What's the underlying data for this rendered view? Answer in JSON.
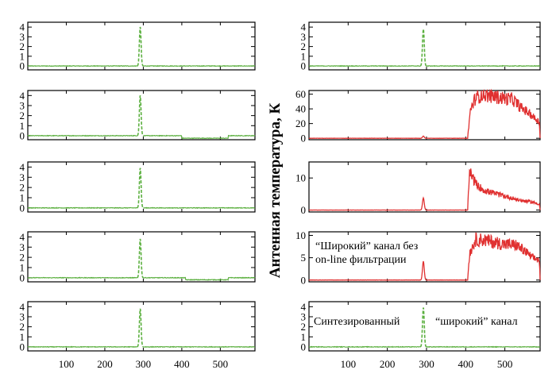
{
  "chart_data": {
    "type": "line",
    "ylabel": "Антенная температура, К",
    "x_ticks": [
      100,
      200,
      300,
      400,
      500
    ],
    "xlim": [
      0,
      590
    ],
    "colors": {
      "green": "#5cb040",
      "red": "#e03030"
    },
    "panels": [
      {
        "id": "left-1",
        "column": "left",
        "row": 1,
        "ylim": [
          -0.4,
          4.5
        ],
        "y_ticks": [
          0,
          1,
          2,
          3,
          4
        ],
        "series": [
          {
            "style": "green-dashed",
            "baseline": 0.0,
            "peak_x": 292,
            "peak_y": 4.0
          }
        ]
      },
      {
        "id": "left-2",
        "column": "left",
        "row": 2,
        "ylim": [
          -0.4,
          4.5
        ],
        "y_ticks": [
          0,
          1,
          2,
          3,
          4
        ],
        "series": [
          {
            "style": "green-dashed",
            "baseline": 0.0,
            "peak_x": 292,
            "peak_y": 4.0,
            "dip": {
              "from": 400,
              "to": 520,
              "value": -0.25
            }
          }
        ]
      },
      {
        "id": "left-3",
        "column": "left",
        "row": 3,
        "ylim": [
          -0.4,
          4.5
        ],
        "y_ticks": [
          0,
          1,
          2,
          3,
          4
        ],
        "series": [
          {
            "style": "green-dashed",
            "baseline": 0.0,
            "peak_x": 292,
            "peak_y": 3.9
          }
        ]
      },
      {
        "id": "left-4",
        "column": "left",
        "row": 4,
        "ylim": [
          -0.4,
          4.5
        ],
        "y_ticks": [
          0,
          1,
          2,
          3,
          4
        ],
        "series": [
          {
            "style": "green-dashed",
            "baseline": 0.0,
            "peak_x": 292,
            "peak_y": 3.8,
            "dip": {
              "from": 410,
              "to": 520,
              "value": -0.2
            }
          }
        ]
      },
      {
        "id": "left-5",
        "column": "left",
        "row": 5,
        "ylim": [
          -0.4,
          4.5
        ],
        "y_ticks": [
          0,
          1,
          2,
          3,
          4
        ],
        "series": [
          {
            "style": "green-dashed",
            "baseline": 0.0,
            "peak_x": 292,
            "peak_y": 3.8
          }
        ]
      },
      {
        "id": "right-1",
        "column": "right",
        "row": 1,
        "ylim": [
          -0.4,
          4.5
        ],
        "y_ticks": [
          0,
          1,
          2,
          3,
          4
        ],
        "series": [
          {
            "style": "green-dashed",
            "baseline": 0.0,
            "peak_x": 292,
            "peak_y": 3.8
          }
        ]
      },
      {
        "id": "right-2",
        "column": "right",
        "row": 2,
        "ylim": [
          -2,
          65
        ],
        "y_ticks": [
          0,
          20,
          40,
          60
        ],
        "series": [
          {
            "style": "red-solid",
            "baseline": 0.0,
            "peak_x": 292,
            "peak_y": 3.0,
            "burst": {
              "from": 405,
              "to": 590,
              "levels": [
                [
                  405,
                  0
                ],
                [
                  412,
                  38
                ],
                [
                  425,
                  55
                ],
                [
                  445,
                  60
                ],
                [
                  470,
                  57
                ],
                [
                  500,
                  54
                ],
                [
                  520,
                  53
                ],
                [
                  540,
                  42
                ],
                [
                  560,
                  35
                ],
                [
                  575,
                  28
                ],
                [
                  588,
                  22
                ],
                [
                  590,
                  0
                ]
              ]
            }
          }
        ]
      },
      {
        "id": "right-3",
        "column": "right",
        "row": 3,
        "ylim": [
          -0.6,
          15
        ],
        "y_ticks": [
          0,
          10
        ],
        "series": [
          {
            "style": "red-solid",
            "baseline": 0.0,
            "peak_x": 292,
            "peak_y": 3.8,
            "burst": {
              "from": 405,
              "to": 590,
              "levels": [
                [
                  405,
                  0
                ],
                [
                  410,
                  12
                ],
                [
                  418,
                  10
                ],
                [
                  430,
                  7.5
                ],
                [
                  450,
                  6
                ],
                [
                  480,
                  5
                ],
                [
                  510,
                  4
                ],
                [
                  540,
                  3
                ],
                [
                  570,
                  2.5
                ],
                [
                  588,
                  1.8
                ],
                [
                  590,
                  0
                ]
              ]
            }
          }
        ]
      },
      {
        "id": "right-4",
        "column": "right",
        "row": 4,
        "ylim": [
          -0.4,
          10.8
        ],
        "y_ticks": [
          0,
          5,
          10
        ],
        "annotation": [
          "“Широкий” канал без",
          "on-line фильтрации"
        ],
        "series": [
          {
            "style": "red-solid",
            "baseline": 0.0,
            "peak_x": 292,
            "peak_y": 4.2,
            "burst": {
              "from": 405,
              "to": 590,
              "levels": [
                [
                  405,
                  0
                ],
                [
                  410,
                  6
                ],
                [
                  425,
                  9
                ],
                [
                  445,
                  9
                ],
                [
                  470,
                  8.5
                ],
                [
                  500,
                  8
                ],
                [
                  530,
                  7.8
                ],
                [
                  550,
                  6.5
                ],
                [
                  570,
                  5
                ],
                [
                  588,
                  4.5
                ],
                [
                  590,
                  0
                ]
              ]
            }
          }
        ]
      },
      {
        "id": "right-5",
        "column": "right",
        "row": 5,
        "ylim": [
          -0.4,
          4.5
        ],
        "y_ticks": [
          0,
          1,
          2,
          3,
          4
        ],
        "annotation_left": "Синтезированный",
        "annotation_right": "“широкий” канал",
        "series": [
          {
            "style": "green-dashed",
            "baseline": 0.0,
            "peak_x": 292,
            "peak_y": 3.9
          }
        ]
      }
    ]
  }
}
